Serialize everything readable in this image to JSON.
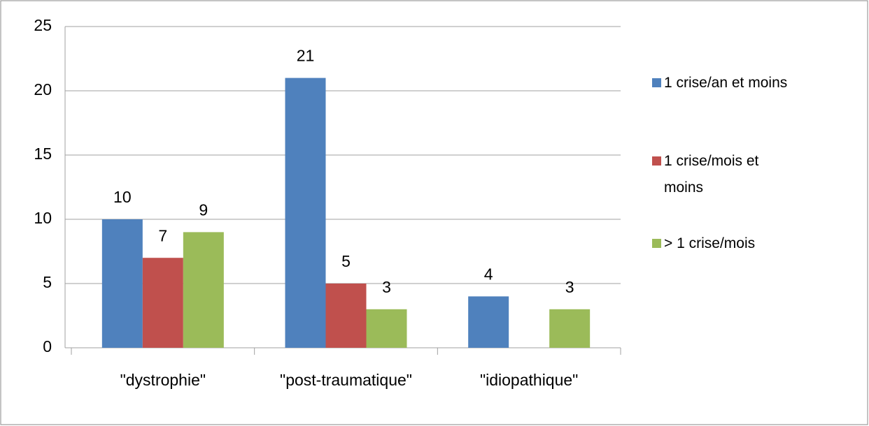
{
  "chart_data": {
    "type": "bar",
    "categories": [
      "\"dystrophie\"",
      "\"post-traumatique\"",
      "\"idiopathique\""
    ],
    "series": [
      {
        "name": "1 crise/an et moins",
        "color": "#4f81bd",
        "values": [
          10,
          21,
          4
        ]
      },
      {
        "name": "1 crise/mois et moins",
        "color": "#c0504d",
        "values": [
          7,
          5,
          null
        ]
      },
      {
        "name": "> 1 crise/mois",
        "color": "#9bbb59",
        "values": [
          9,
          3,
          3
        ]
      }
    ],
    "ylim": [
      0,
      25
    ],
    "yticks": [
      0,
      5,
      10,
      15,
      20,
      25
    ],
    "grid": true,
    "legend": "right"
  }
}
